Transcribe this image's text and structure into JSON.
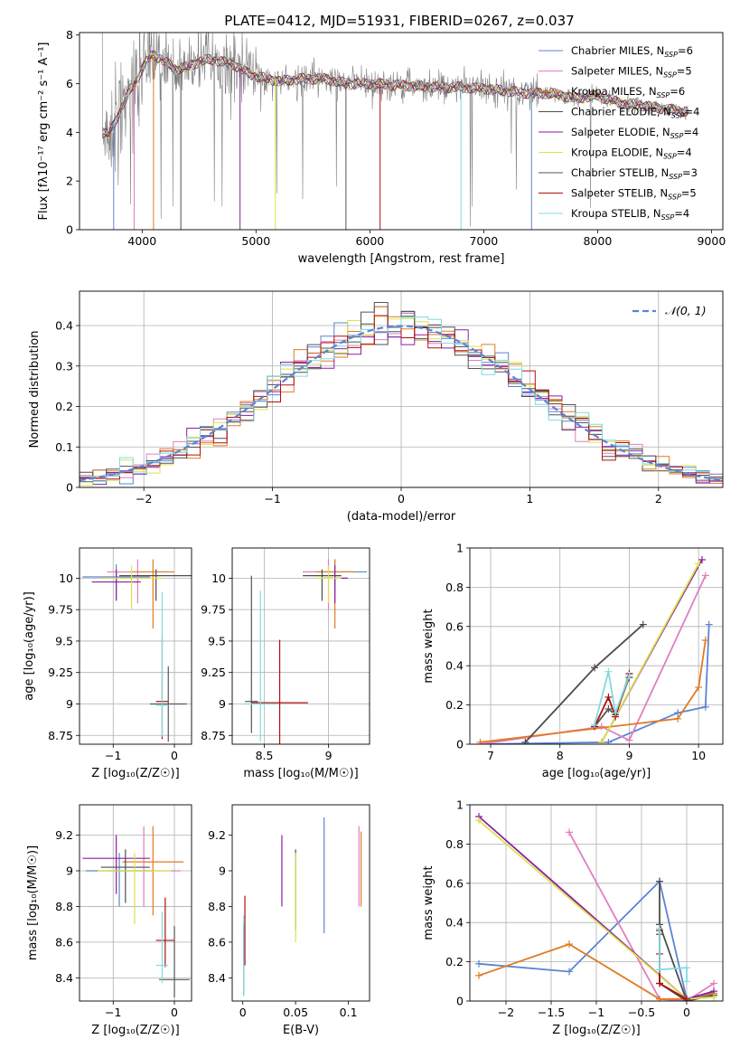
{
  "title": "PLATE=0412, MJD=51931, FIBERID=0267, z=0.037",
  "models": [
    {
      "name": "Chabrier MILES",
      "nssp": "6",
      "color": "#5b84d2"
    },
    {
      "name": "Salpeter MILES",
      "nssp": "5",
      "color": "#e07ec0"
    },
    {
      "name": "Kroupa MILES",
      "nssp": "6",
      "color": "#e07b23"
    },
    {
      "name": "Chabrier ELODIE",
      "nssp": "4",
      "color": "#4d4d4d"
    },
    {
      "name": "Salpeter ELODIE",
      "nssp": "4",
      "color": "#8b1fa0"
    },
    {
      "name": "Kroupa ELODIE",
      "nssp": "4",
      "color": "#dbe24b"
    },
    {
      "name": "Chabrier STELIB",
      "nssp": "3",
      "color": "#555555"
    },
    {
      "name": "Salpeter STELIB",
      "nssp": "5",
      "color": "#b01010"
    },
    {
      "name": "Kroupa STELIB",
      "nssp": "4",
      "color": "#7fdbe0"
    }
  ],
  "legend_nssp_prefix": "N",
  "legend_nssp_sub": "SSP",
  "chart_data": [
    {
      "id": "spectrum",
      "type": "line",
      "xlabel": "wavelength [Angstrom, rest frame]",
      "ylabel": "Flux [fλ10⁻¹⁷ erg cm⁻² s⁻¹ A⁻¹]",
      "xlim": [
        3450,
        9100
      ],
      "ylim": [
        0,
        8.1
      ],
      "xticks": [
        4000,
        5000,
        6000,
        7000,
        8000,
        9000
      ],
      "yticks": [
        0,
        2,
        4,
        6,
        8
      ],
      "legend": "right",
      "continuum": {
        "x": [
          3650,
          3700,
          3750,
          3800,
          3850,
          3900,
          3950,
          4000,
          4050,
          4100,
          4200,
          4300,
          4400,
          4500,
          4600,
          4700,
          4800,
          4900,
          5000,
          5200,
          5400,
          5600,
          5800,
          6000,
          6200,
          6400,
          6600,
          6800,
          7000,
          7200,
          7400,
          7600,
          7800,
          8000,
          8200,
          8400,
          8600,
          8800
        ],
        "y": [
          4.0,
          3.9,
          4.3,
          4.8,
          5.3,
          5.8,
          6.1,
          6.6,
          7.0,
          7.2,
          6.9,
          6.6,
          6.7,
          6.9,
          7.0,
          6.9,
          6.8,
          6.5,
          6.3,
          6.1,
          6.2,
          6.2,
          6.0,
          6.0,
          5.95,
          5.9,
          5.85,
          5.85,
          5.8,
          5.7,
          5.6,
          5.6,
          5.4,
          5.5,
          5.2,
          5.1,
          4.95,
          4.85
        ]
      },
      "absorption_dips": [
        3750,
        3930,
        4100,
        4340,
        4860,
        5170,
        5790,
        6090,
        6800,
        7420
      ]
    },
    {
      "id": "residuals",
      "type": "line",
      "xlabel": "(data-model)/error",
      "ylabel": "Normed distribution",
      "xlim": [
        -2.5,
        2.5
      ],
      "ylim": [
        0,
        0.485
      ],
      "xticks": [
        -2,
        -1,
        0,
        1,
        2
      ],
      "yticks": [
        0.0,
        0.1,
        0.2,
        0.3,
        0.4
      ],
      "grid": true,
      "legend": "top-right",
      "normal_label": "𝒩(0, 1)",
      "normal_color": "#5b84d2",
      "bins": 48
    },
    {
      "id": "age_vs_Z",
      "type": "scatter",
      "xlabel": "Z [log₁₀(Z/Z☉)]",
      "ylabel": "age  [log₁₀(age/yr)]",
      "xlim": [
        -1.55,
        0.28
      ],
      "ylim": [
        8.68,
        10.24
      ],
      "xticks": [
        -1,
        0
      ],
      "yticks": [
        8.75,
        9.0,
        9.25,
        9.5,
        9.75,
        10.0
      ],
      "grid": true,
      "points": [
        {
          "x": -0.95,
          "y": 10.01,
          "xerr": 0.55,
          "yerr": [
            0.18,
            0.1
          ],
          "model": 0
        },
        {
          "x": -0.6,
          "y": 10.05,
          "xerr": 0.5,
          "yerr": [
            0.25,
            0.1
          ],
          "model": 1
        },
        {
          "x": -0.35,
          "y": 10.05,
          "xerr": 0.35,
          "yerr": [
            0.45,
            0.1
          ],
          "model": 2
        },
        {
          "x": -0.3,
          "y": 10.02,
          "xerr": 0.6,
          "yerr": [
            0.2,
            0.05
          ],
          "model": 3
        },
        {
          "x": -0.95,
          "y": 9.97,
          "xerr": 0.4,
          "yerr": [
            0.15,
            0.1
          ],
          "model": 4
        },
        {
          "x": -0.7,
          "y": 10.0,
          "xerr": 0.5,
          "yerr": [
            0.25,
            0.1
          ],
          "model": 5
        },
        {
          "x": -0.1,
          "y": 9.0,
          "xerr": 0.3,
          "yerr": [
            0.3,
            0.3
          ],
          "model": 6
        },
        {
          "x": -0.2,
          "y": 9.02,
          "xerr": 0.1,
          "yerr": [
            0.3,
            0.5
          ],
          "model": 7
        },
        {
          "x": -0.2,
          "y": 8.99,
          "xerr": 0.1,
          "yerr": [
            0.25,
            0.9
          ],
          "model": 8
        }
      ]
    },
    {
      "id": "age_vs_mass",
      "type": "scatter",
      "xlabel": "mass [log₁₀(M/M☉)]",
      "ylabel": "",
      "xlim": [
        8.25,
        9.32
      ],
      "ylim": [
        8.68,
        10.24
      ],
      "xticks": [
        8.5,
        9.0
      ],
      "yticks": [
        8.75,
        9.0,
        9.25,
        9.5,
        9.75,
        10.0
      ],
      "grid": true,
      "points": [
        {
          "x": 9.05,
          "y": 10.05,
          "xerr": 0.25,
          "yerr": [
            0.2,
            0.1
          ],
          "model": 0
        },
        {
          "x": 9.0,
          "y": 10.05,
          "xerr": 0.2,
          "yerr": [
            0.3,
            0.1
          ],
          "model": 1
        },
        {
          "x": 9.05,
          "y": 10.05,
          "xerr": 0.15,
          "yerr": [
            0.45,
            0.1
          ],
          "model": 2
        },
        {
          "x": 8.95,
          "y": 10.02,
          "xerr": 0.15,
          "yerr": [
            0.2,
            0.05
          ],
          "model": 3
        },
        {
          "x": 9.05,
          "y": 10.0,
          "xerr": 0.1,
          "yerr": [
            0.2,
            0.1
          ],
          "model": 4
        },
        {
          "x": 9.0,
          "y": 10.0,
          "xerr": 0.1,
          "yerr": [
            0.2,
            0.1
          ],
          "model": 5
        },
        {
          "x": 8.4,
          "y": 9.02,
          "xerr": 0.05,
          "yerr": [
            0.25,
            1.0
          ],
          "model": 6
        },
        {
          "x": 8.62,
          "y": 9.01,
          "xerr": 0.22,
          "yerr": [
            0.35,
            0.5
          ],
          "model": 7
        },
        {
          "x": 8.47,
          "y": 9.0,
          "xerr": 0.12,
          "yerr": [
            0.3,
            0.9
          ],
          "model": 8
        }
      ]
    },
    {
      "id": "massweight_vs_age",
      "type": "line",
      "xlabel": "age  [log₁₀(age/yr)]",
      "ylabel": "mass weight",
      "xlim": [
        6.7,
        10.35
      ],
      "ylim": [
        0,
        1.0
      ],
      "xticks": [
        7,
        8,
        9,
        10
      ],
      "yticks": [
        0.0,
        0.2,
        0.4,
        0.6,
        0.8,
        1.0
      ],
      "grid": true,
      "series": [
        {
          "model": 0,
          "x": [
            6.85,
            8.7,
            9.7,
            10.1,
            10.15
          ],
          "y": [
            0.0,
            0.01,
            0.16,
            0.19,
            0.61
          ]
        },
        {
          "model": 1,
          "x": [
            6.85,
            8.6,
            9.0,
            10.1
          ],
          "y": [
            0.0,
            0.09,
            0.02,
            0.86
          ]
        },
        {
          "model": 2,
          "x": [
            6.85,
            9.7,
            10.0,
            10.1
          ],
          "y": [
            0.01,
            0.13,
            0.29,
            0.53
          ]
        },
        {
          "model": 3,
          "x": [
            7.5,
            8.5,
            9.2
          ],
          "y": [
            0.01,
            0.39,
            0.61
          ]
        },
        {
          "model": 4,
          "x": [
            8.6,
            10.05
          ],
          "y": [
            0.01,
            0.94
          ]
        },
        {
          "model": 5,
          "x": [
            8.6,
            10.0
          ],
          "y": [
            0.01,
            0.92
          ]
        },
        {
          "model": 6,
          "x": [
            8.5,
            8.7,
            8.8,
            9.0
          ],
          "y": [
            0.09,
            0.18,
            0.15,
            0.34
          ]
        },
        {
          "model": 7,
          "x": [
            8.5,
            8.7,
            8.8,
            9.0
          ],
          "y": [
            0.09,
            0.24,
            0.14,
            0.36
          ]
        },
        {
          "model": 8,
          "x": [
            8.5,
            8.7,
            8.8,
            9.0
          ],
          "y": [
            0.1,
            0.37,
            0.16,
            0.35
          ]
        }
      ]
    },
    {
      "id": "mass_vs_Z",
      "type": "scatter",
      "xlabel": "Z [log₁₀(Z/Z☉)]",
      "ylabel": "mass [log₁₀(M/M☉)]",
      "xlim": [
        -1.55,
        0.28
      ],
      "ylim": [
        8.27,
        9.37
      ],
      "xticks": [
        -1,
        0
      ],
      "yticks": [
        8.4,
        8.6,
        8.8,
        9.0,
        9.2
      ],
      "grid": true,
      "points": [
        {
          "x": -0.9,
          "y": 9.0,
          "xerr": 0.55,
          "yerr": [
            0.2,
            0.1
          ],
          "model": 0
        },
        {
          "x": -0.5,
          "y": 9.0,
          "xerr": 0.6,
          "yerr": [
            0.2,
            0.25
          ],
          "model": 1
        },
        {
          "x": -0.35,
          "y": 9.05,
          "xerr": 0.5,
          "yerr": [
            0.3,
            0.2
          ],
          "model": 2
        },
        {
          "x": -0.8,
          "y": 9.02,
          "xerr": 0.4,
          "yerr": [
            0.2,
            0.1
          ],
          "model": 3
        },
        {
          "x": -0.95,
          "y": 9.07,
          "xerr": 0.55,
          "yerr": [
            0.2,
            0.13
          ],
          "model": 4
        },
        {
          "x": -0.65,
          "y": 9.0,
          "xerr": 0.6,
          "yerr": [
            0.3,
            0.1
          ],
          "model": 5
        },
        {
          "x": 0.0,
          "y": 8.39,
          "xerr": 0.25,
          "yerr": [
            0.1,
            0.3
          ],
          "model": 6
        },
        {
          "x": -0.15,
          "y": 8.61,
          "xerr": 0.15,
          "yerr": [
            0.15,
            0.24
          ],
          "model": 7
        },
        {
          "x": -0.2,
          "y": 8.47,
          "xerr": 0.1,
          "yerr": [
            0.1,
            0.3
          ],
          "model": 8
        }
      ]
    },
    {
      "id": "mass_vs_ebv",
      "type": "scatter",
      "xlabel": "E(B-V)",
      "ylabel": "",
      "xlim": [
        -0.01,
        0.12
      ],
      "ylim": [
        8.27,
        9.37
      ],
      "xticks": [
        0.0,
        0.05,
        0.1
      ],
      "yticks": [
        8.4,
        8.6,
        8.8,
        9.0,
        9.2
      ],
      "grid": false,
      "points": [
        {
          "x": 0.077,
          "y": 9.0,
          "yerr": [
            0.35,
            0.3
          ],
          "model": 0
        },
        {
          "x": 0.11,
          "y": 9.0,
          "yerr": [
            0.2,
            0.25
          ],
          "model": 1
        },
        {
          "x": 0.112,
          "y": 9.0,
          "yerr": [
            0.2,
            0.22
          ],
          "model": 2
        },
        {
          "x": 0.05,
          "y": 9.02,
          "yerr": [
            0.35,
            0.1
          ],
          "model": 3
        },
        {
          "x": 0.037,
          "y": 9.0,
          "yerr": [
            0.2,
            0.2
          ],
          "model": 4
        },
        {
          "x": 0.05,
          "y": 9.0,
          "yerr": [
            0.4,
            0.1
          ],
          "model": 5
        },
        {
          "x": 0.001,
          "y": 8.4,
          "yerr": [
            0.1,
            0.3
          ],
          "model": 6
        },
        {
          "x": 0.002,
          "y": 8.62,
          "yerr": [
            0.15,
            0.24
          ],
          "model": 7
        },
        {
          "x": 0.001,
          "y": 8.45,
          "yerr": [
            0.15,
            0.3
          ],
          "model": 8
        }
      ]
    },
    {
      "id": "massweight_vs_Z",
      "type": "line",
      "xlabel": "Z [log₁₀(Z/Z☉)]",
      "ylabel": "mass weight",
      "xlim": [
        -2.4,
        0.4
      ],
      "ylim": [
        0,
        1.0
      ],
      "xticks": [
        -2.0,
        -1.5,
        -1.0,
        -0.5,
        0.0
      ],
      "yticks": [
        0.0,
        0.2,
        0.4,
        0.6,
        0.8,
        1.0
      ],
      "grid": true,
      "series": [
        {
          "model": 0,
          "x": [
            -2.3,
            -1.3,
            -0.3,
            0.0,
            0.3
          ],
          "y": [
            0.19,
            0.15,
            0.61,
            0.01,
            0.03
          ]
        },
        {
          "model": 1,
          "x": [
            -1.3,
            -0.3,
            0.0,
            0.3
          ],
          "y": [
            0.86,
            0.01,
            0.0,
            0.09
          ]
        },
        {
          "model": 2,
          "x": [
            -2.3,
            -1.3,
            -0.3,
            0.0,
            0.3
          ],
          "y": [
            0.13,
            0.29,
            0.01,
            0.01,
            0.04
          ]
        },
        {
          "model": 3,
          "x": [
            -0.3,
            -0.3,
            0.0,
            0.3
          ],
          "y": [
            0.61,
            0.39,
            0.0,
            0.03
          ]
        },
        {
          "model": 4,
          "x": [
            -2.3,
            0.0,
            0.3
          ],
          "y": [
            0.94,
            0.01,
            0.05
          ]
        },
        {
          "model": 5,
          "x": [
            -2.3,
            0.0,
            0.3
          ],
          "y": [
            0.92,
            0.01,
            0.02
          ]
        },
        {
          "model": 6,
          "x": [
            -0.3,
            -0.3,
            0.0
          ],
          "y": [
            0.34,
            0.09,
            0.0
          ]
        },
        {
          "model": 7,
          "x": [
            -0.3,
            -0.3,
            -0.3,
            0.0
          ],
          "y": [
            0.36,
            0.24,
            0.09,
            0.01
          ]
        },
        {
          "model": 8,
          "x": [
            -0.3,
            -0.3,
            0.0,
            0.0
          ],
          "y": [
            0.37,
            0.16,
            0.17,
            0.1
          ]
        }
      ]
    }
  ]
}
